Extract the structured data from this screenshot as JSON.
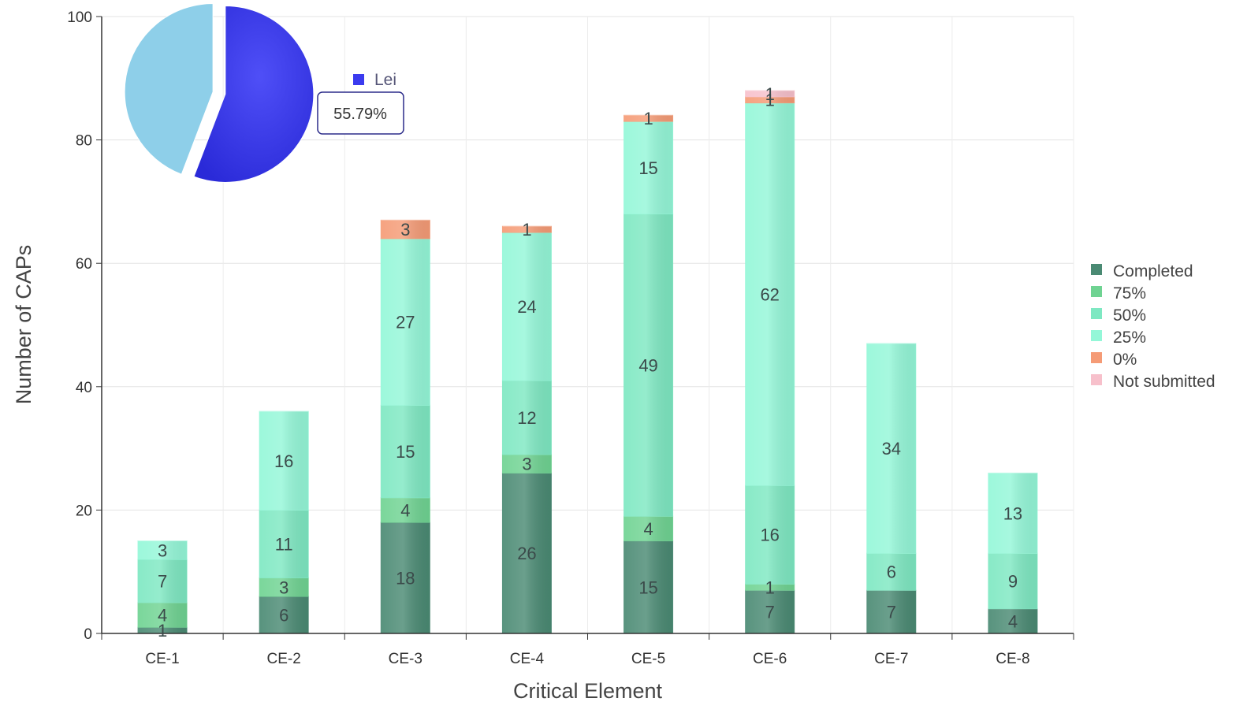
{
  "chart_data": [
    {
      "type": "bar",
      "stacked": true,
      "categories": [
        "CE-1",
        "CE-2",
        "CE-3",
        "CE-4",
        "CE-5",
        "CE-6",
        "CE-7",
        "CE-8"
      ],
      "series": [
        {
          "name": "Completed",
          "color": "#4a8a73",
          "values": [
            1,
            6,
            18,
            26,
            15,
            7,
            7,
            4
          ]
        },
        {
          "name": "75%",
          "color": "#6fd392",
          "values": [
            4,
            3,
            4,
            3,
            4,
            1,
            0,
            0
          ]
        },
        {
          "name": "50%",
          "color": "#7ee8c2",
          "values": [
            7,
            11,
            15,
            12,
            49,
            16,
            6,
            9
          ]
        },
        {
          "name": "25%",
          "color": "#94f7d8",
          "values": [
            3,
            16,
            27,
            24,
            15,
            62,
            34,
            13
          ]
        },
        {
          "name": "0%",
          "color": "#f59b76",
          "values": [
            0,
            0,
            3,
            1,
            1,
            1,
            0,
            0
          ]
        },
        {
          "name": "Not submitted",
          "color": "#f7c0cb",
          "values": [
            0,
            0,
            0,
            0,
            0,
            1,
            0,
            0
          ]
        }
      ],
      "xlabel": "Critical Element",
      "ylabel": "Number of CAPs",
      "ylim": [
        0,
        100
      ],
      "yticks": [
        "0",
        "20",
        "40",
        "60",
        "80",
        "100"
      ],
      "grid": true,
      "legend_position": "right"
    },
    {
      "type": "pie",
      "slices": [
        {
          "name": "Lei",
          "value": 55.79,
          "color": "#3b3bef",
          "exploded": true
        },
        {
          "name": "",
          "value": 44.21,
          "color": "#8ecfe9",
          "exploded": true
        }
      ],
      "tooltip": "55.79%",
      "legend": [
        "Lei"
      ],
      "legend_position": "right"
    }
  ]
}
